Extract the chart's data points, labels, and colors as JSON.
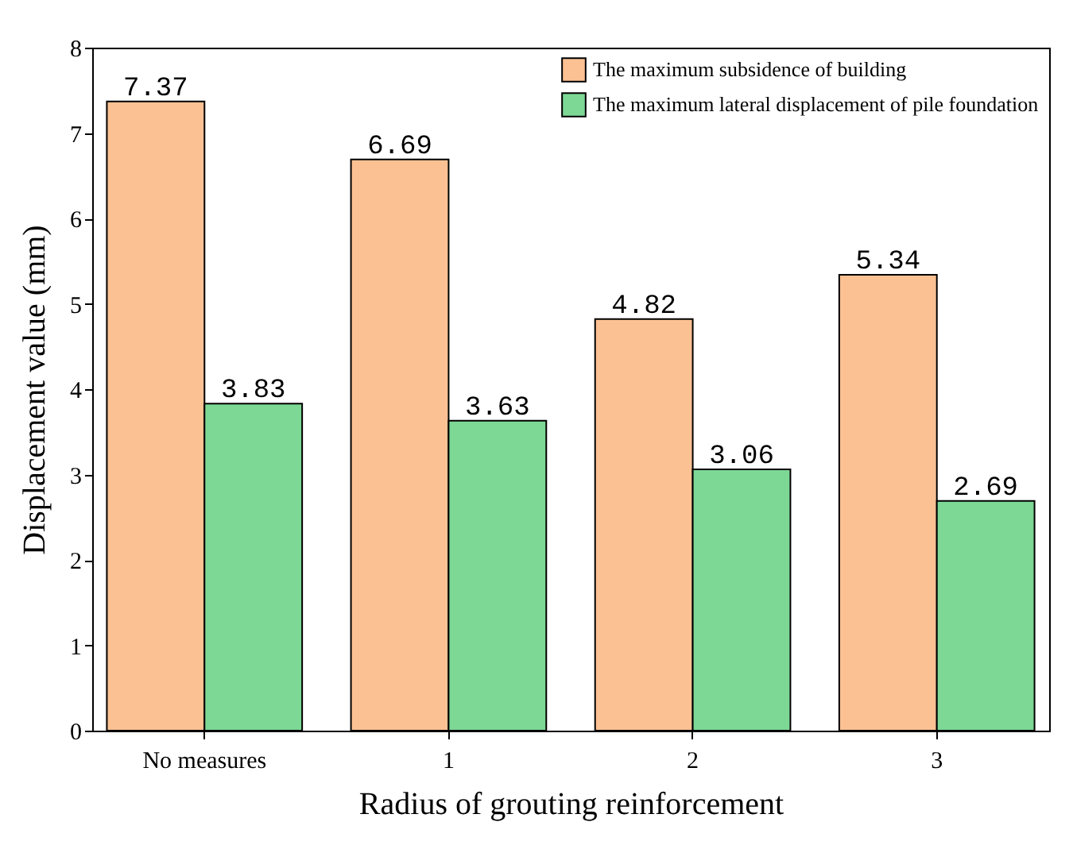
{
  "chart_data": {
    "type": "bar",
    "xlabel": "Radius of grouting reinforcement",
    "ylabel": "Displacement value (mm)",
    "categories": [
      "No measures",
      "1",
      "2",
      "3"
    ],
    "series": [
      {
        "name": "The maximum subsidence of building",
        "color": "#fcc193",
        "values": [
          7.37,
          6.69,
          4.82,
          5.34
        ]
      },
      {
        "name": "The maximum lateral displacement of pile foundation",
        "color": "#7dd895",
        "values": [
          3.83,
          3.63,
          3.06,
          2.69
        ]
      }
    ],
    "ylim": [
      0,
      8
    ],
    "yticks": [
      0,
      1,
      2,
      3,
      4,
      5,
      6,
      7,
      8
    ],
    "data_labels": true,
    "legend": "top right"
  }
}
